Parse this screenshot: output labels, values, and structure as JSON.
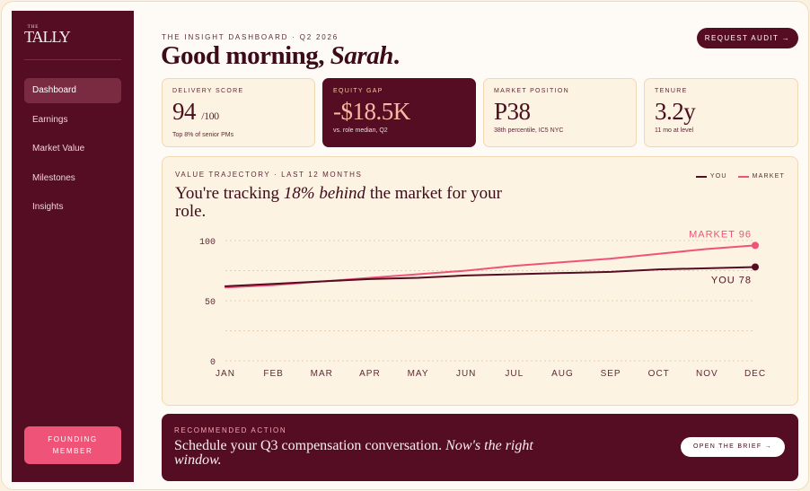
{
  "sidebar": {
    "logo_small": "THE",
    "logo_word": "TALLY",
    "nav": [
      {
        "label": "Dashboard",
        "active": true
      },
      {
        "label": "Earnings",
        "active": false
      },
      {
        "label": "Market Value",
        "active": false
      },
      {
        "label": "Milestones",
        "active": false
      },
      {
        "label": "Insights",
        "active": false
      }
    ],
    "founding_line1": "FOUNDING",
    "founding_line2": "MEMBER"
  },
  "header": {
    "eyebrow": "THE INSIGHT DASHBOARD · Q2 2026",
    "greeting_prefix": "Good morning, ",
    "greeting_name": "Sarah",
    "greeting_suffix": ".",
    "audit_button": "REQUEST AUDIT →"
  },
  "kpis": [
    {
      "label": "DELIVERY SCORE",
      "value": "94",
      "unit": "/100",
      "note": "Top 8% of senior PMs"
    },
    {
      "label": "EQUITY GAP",
      "value": "-$18.5K",
      "unit": "",
      "note": "vs. role median, Q2"
    },
    {
      "label": "MARKET POSITION",
      "value": "P38",
      "unit": "",
      "note": "38th percentile, IC5 NYC"
    },
    {
      "label": "TENURE",
      "value": "3.2y",
      "unit": "",
      "note": "11 mo at level"
    }
  ],
  "chart_panel": {
    "eyebrow": "VALUE TRAJECTORY · LAST 12 MONTHS",
    "headline_prefix": "You're tracking ",
    "headline_emphasis": "18% behind",
    "headline_suffix": " the market for your role.",
    "legend": {
      "you": "YOU",
      "market": "MARKET"
    }
  },
  "chart_data": {
    "type": "line",
    "x": [
      "JAN",
      "FEB",
      "MAR",
      "APR",
      "MAY",
      "JUN",
      "JUL",
      "AUG",
      "SEP",
      "OCT",
      "NOV",
      "DEC"
    ],
    "y_ticks": [
      0,
      50,
      100
    ],
    "ylim": [
      0,
      100
    ],
    "grid": true,
    "series": [
      {
        "name": "YOU",
        "color": "#540d23",
        "values": [
          62,
          64,
          66,
          68,
          69,
          71,
          72,
          73,
          74,
          76,
          77,
          78
        ],
        "end_label": "YOU 78"
      },
      {
        "name": "MARKET",
        "color": "#ef5378",
        "values": [
          61,
          63,
          66,
          69,
          72,
          75,
          79,
          82,
          85,
          89,
          93,
          96
        ],
        "end_label": "MARKET 96"
      }
    ]
  },
  "action": {
    "eyebrow": "RECOMMENDED ACTION",
    "text_prefix": "Schedule your Q3 compensation conversation. ",
    "text_emphasis": "Now's the right window.",
    "button": "OPEN THE BRIEF →"
  },
  "colors": {
    "brand": "#540d23",
    "accent": "#ef5378",
    "card_bg": "#fdf3e2"
  }
}
